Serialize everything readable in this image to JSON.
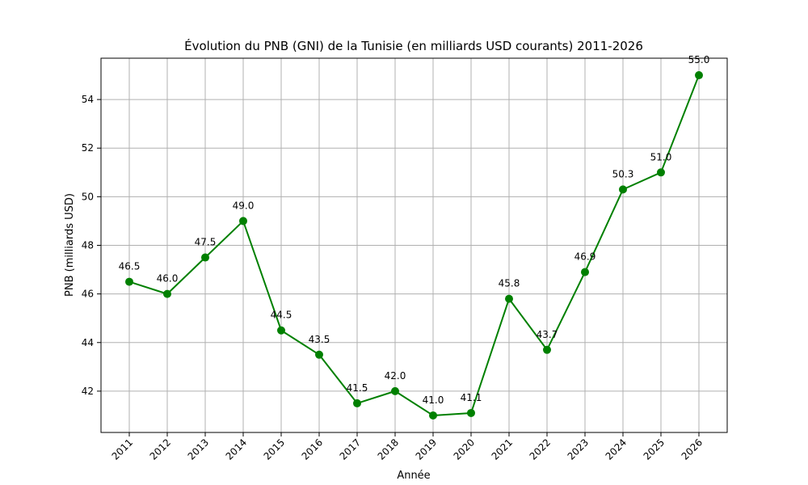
{
  "chart_data": {
    "type": "line",
    "title": "Évolution du PNB (GNI) de la Tunisie (en milliards USD courants) 2011-2026",
    "xlabel": "Année",
    "ylabel": "PNB (milliards USD)",
    "categories": [
      "2011",
      "2012",
      "2013",
      "2014",
      "2015",
      "2016",
      "2017",
      "2018",
      "2019",
      "2020",
      "2021",
      "2022",
      "2023",
      "2024",
      "2025",
      "2026"
    ],
    "series": [
      {
        "values": [
          46.5,
          46.0,
          47.5,
          49.0,
          44.5,
          43.5,
          41.5,
          42.0,
          41.0,
          41.1,
          45.8,
          43.7,
          46.9,
          50.3,
          51.0,
          55.0
        ],
        "labels": [
          "46.5",
          "46.0",
          "47.5",
          "49.0",
          "44.5",
          "43.5",
          "41.5",
          "42.0",
          "41.0",
          "41.1",
          "45.8",
          "43.7",
          "46.9",
          "50.3",
          "51.0",
          "55.0"
        ],
        "color": "#008000"
      }
    ],
    "yticks": [
      "42",
      "44",
      "46",
      "48",
      "50",
      "52",
      "54"
    ],
    "ylim": [
      40.3,
      55.7
    ],
    "grid": true,
    "marker": "circle"
  }
}
